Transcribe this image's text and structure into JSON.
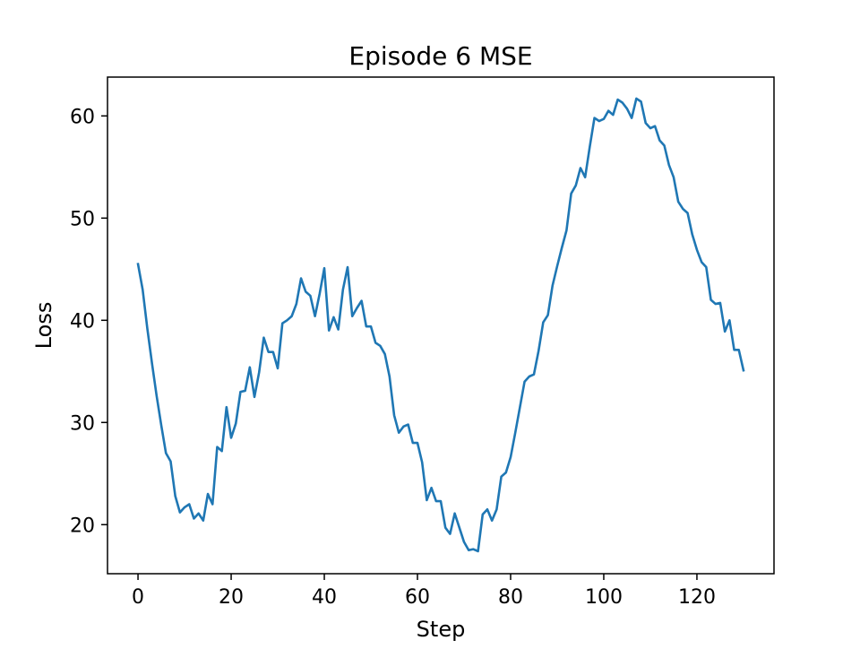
{
  "chart_data": {
    "type": "line",
    "title": "Episode 6 MSE",
    "xlabel": "Step",
    "ylabel": "Loss",
    "xlim": [
      -6.55,
      136.55
    ],
    "ylim": [
      15.2,
      63.8
    ],
    "xticks": [
      0,
      20,
      40,
      60,
      80,
      100,
      120
    ],
    "yticks": [
      20,
      30,
      40,
      50,
      60
    ],
    "grid": false,
    "legend": "none",
    "line_color": "#1f77b4",
    "series": [
      {
        "x": [
          0,
          1,
          2,
          3,
          4,
          5,
          6,
          7,
          8,
          9,
          10,
          11,
          12,
          13,
          14,
          15,
          16,
          17,
          18,
          19,
          20,
          21,
          22,
          23,
          24,
          25,
          26,
          27,
          28,
          29,
          30,
          31,
          32,
          33,
          34,
          35,
          36,
          37,
          38,
          39,
          40,
          41,
          42,
          43,
          44,
          45,
          46,
          47,
          48,
          49,
          50,
          51,
          52,
          53,
          54,
          55,
          56,
          57,
          58,
          59,
          60,
          61,
          62,
          63,
          64,
          65,
          66,
          67,
          68,
          69,
          70,
          71,
          72,
          73,
          74,
          75,
          76,
          77,
          78,
          79,
          80,
          81,
          82,
          83,
          84,
          85,
          86,
          87,
          88,
          89,
          90,
          91,
          92,
          93,
          94,
          95,
          96,
          97,
          98,
          99,
          100,
          101,
          102,
          103,
          104,
          105,
          106,
          107,
          108,
          109,
          110,
          111,
          112,
          113,
          114,
          115,
          116,
          117,
          118,
          119,
          120,
          121,
          122,
          123,
          124,
          125,
          126,
          127,
          128,
          129,
          130
        ],
        "values": [
          45.5,
          43.0,
          39.2,
          35.8,
          32.6,
          29.7,
          27.0,
          26.2,
          22.8,
          21.2,
          21.7,
          22.0,
          20.6,
          21.1,
          20.4,
          23.0,
          22.0,
          27.6,
          27.2,
          31.5,
          28.5,
          29.9,
          33.0,
          33.1,
          35.4,
          32.5,
          34.9,
          38.3,
          36.9,
          36.9,
          35.3,
          39.7,
          40.0,
          40.4,
          41.6,
          44.1,
          42.8,
          42.4,
          40.4,
          42.6,
          45.1,
          39.0,
          40.3,
          39.1,
          43.0,
          45.2,
          40.4,
          41.2,
          41.9,
          39.4,
          39.4,
          37.8,
          37.5,
          36.7,
          34.5,
          30.7,
          29.0,
          29.6,
          29.8,
          28.0,
          28.0,
          26.1,
          22.4,
          23.6,
          22.3,
          22.3,
          19.7,
          19.1,
          21.1,
          19.7,
          18.3,
          17.5,
          17.6,
          17.4,
          21.0,
          21.5,
          20.4,
          21.5,
          24.7,
          25.1,
          26.6,
          29.0,
          31.5,
          34.0,
          34.5,
          34.7,
          37.0,
          39.8,
          40.5,
          43.4,
          45.3,
          47.1,
          48.8,
          52.4,
          53.2,
          54.9,
          54.0,
          57.0,
          59.8,
          59.5,
          59.7,
          60.5,
          60.1,
          61.6,
          61.3,
          60.7,
          59.8,
          61.7,
          61.4,
          59.3,
          58.8,
          59.0,
          57.6,
          57.1,
          55.2,
          54.0,
          51.6,
          50.9,
          50.5,
          48.4,
          46.9,
          45.7,
          45.2,
          42.0,
          41.6,
          41.7,
          38.9,
          40.0,
          37.1,
          37.1,
          35.1
        ]
      }
    ]
  }
}
